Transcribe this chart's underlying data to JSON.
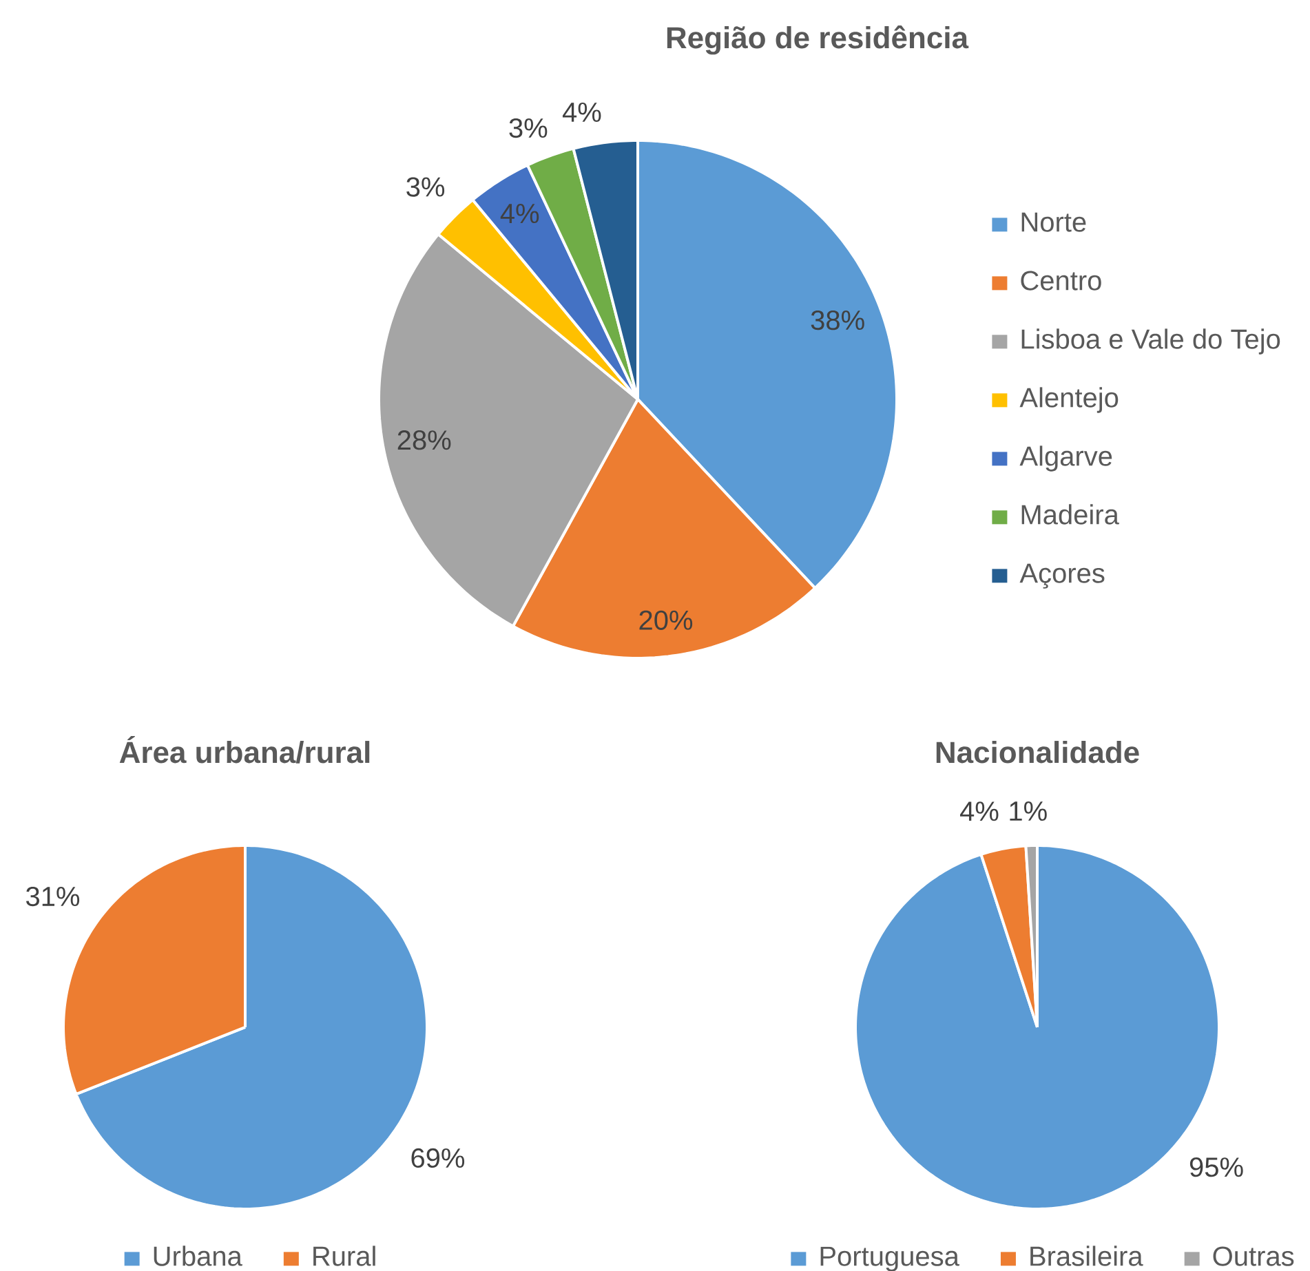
{
  "chart_data": [
    {
      "type": "pie",
      "title": "Região de residência",
      "categories": [
        "Norte",
        "Centro",
        "Lisboa e Vale do Tejo",
        "Alentejo",
        "Algarve",
        "Madeira",
        "Açores"
      ],
      "values": [
        38,
        20,
        28,
        3,
        4,
        3,
        4
      ],
      "colors": [
        "#5b9bd5",
        "#ed7d31",
        "#a5a5a5",
        "#ffc000",
        "#4472c4",
        "#70ad47",
        "#255e91"
      ],
      "value_labels": [
        "38%",
        "20%",
        "28%",
        "3%",
        "4%",
        "3%",
        "4%"
      ],
      "legend": "right"
    },
    {
      "type": "pie",
      "title": "Área urbana/rural",
      "categories": [
        "Urbana",
        "Rural"
      ],
      "values": [
        69,
        31
      ],
      "colors": [
        "#5b9bd5",
        "#ed7d31"
      ],
      "value_labels": [
        "69%",
        "31%"
      ],
      "legend": "bottom"
    },
    {
      "type": "pie",
      "title": "Nacionalidade",
      "categories": [
        "Portuguesa",
        "Brasileira",
        "Outras"
      ],
      "values": [
        95,
        4,
        1
      ],
      "colors": [
        "#5b9bd5",
        "#ed7d31",
        "#a5a5a5"
      ],
      "value_labels": [
        "95%",
        "4%",
        "1%"
      ],
      "legend": "bottom"
    }
  ]
}
